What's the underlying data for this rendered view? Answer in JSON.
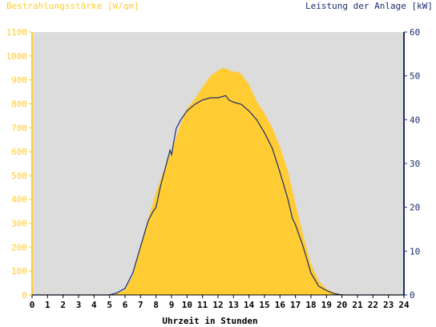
{
  "chart_data": {
    "type": "area",
    "title_left": "Bestrahlungsstärke [W/qm]",
    "title_right": "Leistung der Anlage [kW]",
    "xlabel": "Uhrzeit in Stunden",
    "x_ticks": [
      "0",
      "1",
      "2",
      "3",
      "4",
      "5",
      "6",
      "7",
      "8",
      "9",
      "10",
      "11",
      "12",
      "13",
      "14",
      "15",
      "16",
      "17",
      "18",
      "19",
      "20",
      "21",
      "22",
      "23",
      "24"
    ],
    "y_left_ticks": [
      "0",
      "100",
      "200",
      "300",
      "400",
      "500",
      "600",
      "700",
      "800",
      "900",
      "1000",
      "1100"
    ],
    "y_right_ticks": [
      "0",
      "10",
      "20",
      "30",
      "40",
      "50",
      "60"
    ],
    "xlim": [
      0,
      24
    ],
    "ylim_left": [
      0,
      1100
    ],
    "ylim_right": [
      0,
      60
    ],
    "grid": false,
    "series": [
      {
        "name": "Bestrahlungsstärke [W/qm]",
        "axis": "left",
        "style": "area",
        "color": "#FFCC33",
        "x": [
          0,
          5,
          5.5,
          6,
          6.5,
          7,
          7.5,
          8,
          8.5,
          9,
          9.5,
          10,
          10.5,
          11,
          11.5,
          12,
          12.3,
          12.6,
          12.9,
          13.2,
          13.5,
          14,
          14.5,
          15,
          15.5,
          16,
          16.5,
          17,
          17.5,
          18,
          18.5,
          19,
          19.5,
          20,
          20.5,
          21,
          24
        ],
        "y": [
          0,
          0,
          5,
          20,
          80,
          200,
          320,
          430,
          520,
          600,
          700,
          780,
          820,
          870,
          915,
          940,
          950,
          945,
          935,
          935,
          925,
          880,
          810,
          760,
          700,
          620,
          520,
          380,
          250,
          130,
          60,
          25,
          10,
          3,
          0,
          0,
          0
        ]
      },
      {
        "name": "Leistung der Anlage [kW]",
        "axis": "right",
        "style": "line",
        "color": "#1A2E6E",
        "x": [
          0,
          5,
          5.5,
          6,
          6.5,
          7,
          7.5,
          7.8,
          8,
          8.3,
          8.6,
          8.9,
          9,
          9.3,
          9.6,
          10,
          10.5,
          11,
          11.5,
          12,
          12.5,
          12.7,
          13,
          13.5,
          14,
          14.5,
          15,
          15.5,
          16,
          16.5,
          16.8,
          17,
          17.5,
          18,
          18.5,
          19,
          19.5,
          20,
          24
        ],
        "y": [
          0,
          0,
          0.5,
          1.5,
          5,
          11,
          17,
          19,
          20,
          25,
          29,
          33,
          32,
          38,
          40,
          42,
          43.5,
          44.5,
          45,
          45,
          45.5,
          44.5,
          44,
          43.5,
          42,
          40,
          37,
          33.5,
          28,
          22,
          17.5,
          16,
          11,
          5,
          2,
          1,
          0.3,
          0,
          0
        ]
      }
    ]
  },
  "colors": {
    "plot_background": "#DCDCDC",
    "irradiance": "#FFCC33",
    "power": "#1A2E6E"
  }
}
